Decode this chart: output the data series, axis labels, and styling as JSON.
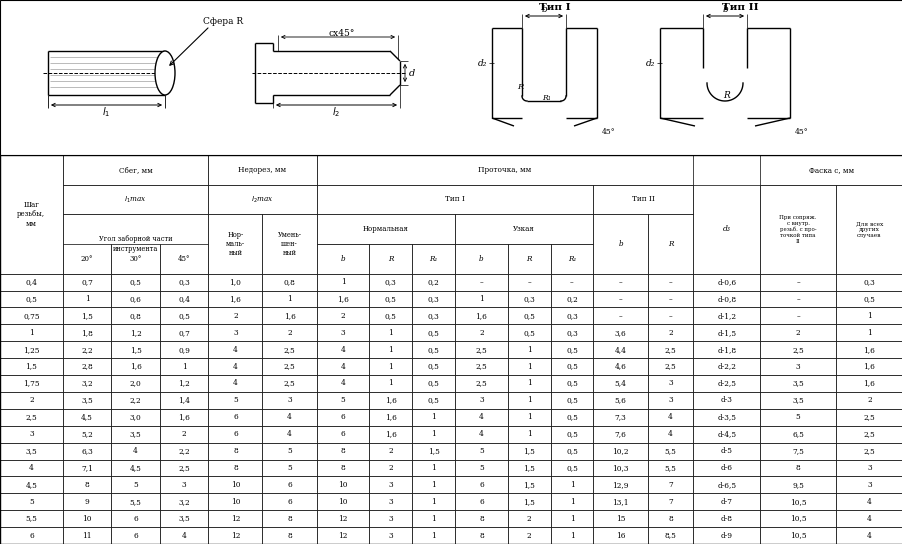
{
  "bg_color": "#ffffff",
  "rows": [
    [
      "0,4",
      "0,7",
      "0,5",
      "0,3",
      "1,0",
      "0,8",
      "1",
      "0,3",
      "0,2",
      "–",
      "–",
      "–",
      "–",
      "–",
      "d-0,6",
      "–",
      "0,3"
    ],
    [
      "0,5",
      "1",
      "0,6",
      "0,4",
      "1,6",
      "1",
      "1,6",
      "0,5",
      "0,3",
      "1",
      "0,3",
      "0,2",
      "–",
      "–",
      "d-0,8",
      "–",
      "0,5"
    ],
    [
      "0,75",
      "1,5",
      "0,8",
      "0,5",
      "2",
      "1,6",
      "2",
      "0,5",
      "0,3",
      "1,6",
      "0,5",
      "0,3",
      "–",
      "–",
      "d-1,2",
      "–",
      "1"
    ],
    [
      "1",
      "1,8",
      "1,2",
      "0,7",
      "3",
      "2",
      "3",
      "1",
      "0,5",
      "2",
      "0,5",
      "0,3",
      "3,6",
      "2",
      "d-1,5",
      "2",
      "1"
    ],
    [
      "1,25",
      "2,2",
      "1,5",
      "0,9",
      "4",
      "2,5",
      "4",
      "1",
      "0,5",
      "2,5",
      "1",
      "0,5",
      "4,4",
      "2,5",
      "d-1,8",
      "2,5",
      "1,6"
    ],
    [
      "1,5",
      "2,8",
      "1,6",
      "1",
      "4",
      "2,5",
      "4",
      "1",
      "0,5",
      "2,5",
      "1",
      "0,5",
      "4,6",
      "2,5",
      "d-2,2",
      "3",
      "1,6"
    ],
    [
      "1,75",
      "3,2",
      "2,0",
      "1,2",
      "4",
      "2,5",
      "4",
      "1",
      "0,5",
      "2,5",
      "1",
      "0,5",
      "5,4",
      "3",
      "d-2,5",
      "3,5",
      "1,6"
    ],
    [
      "2",
      "3,5",
      "2,2",
      "1,4",
      "5",
      "3",
      "5",
      "1,6",
      "0,5",
      "3",
      "1",
      "0,5",
      "5,6",
      "3",
      "d-3",
      "3,5",
      "2"
    ],
    [
      "2,5",
      "4,5",
      "3,0",
      "1,6",
      "6",
      "4",
      "6",
      "1,6",
      "1",
      "4",
      "1",
      "0,5",
      "7,3",
      "4",
      "d-3,5",
      "5",
      "2,5"
    ],
    [
      "3",
      "5,2",
      "3,5",
      "2",
      "6",
      "4",
      "6",
      "1,6",
      "1",
      "4",
      "1",
      "0,5",
      "7,6",
      "4",
      "d-4,5",
      "6,5",
      "2,5"
    ],
    [
      "3,5",
      "6,3",
      "4",
      "2,2",
      "8",
      "5",
      "8",
      "2",
      "1,5",
      "5",
      "1,5",
      "0,5",
      "10,2",
      "5,5",
      "d-5",
      "7,5",
      "2,5"
    ],
    [
      "4",
      "7,1",
      "4,5",
      "2,5",
      "8",
      "5",
      "8",
      "2",
      "1",
      "5",
      "1,5",
      "0,5",
      "10,3",
      "5,5",
      "d-6",
      "8",
      "3"
    ],
    [
      "4,5",
      "8",
      "5",
      "3",
      "10",
      "6",
      "10",
      "3",
      "1",
      "6",
      "1,5",
      "1",
      "12,9",
      "7",
      "d-6,5",
      "9,5",
      "3"
    ],
    [
      "5",
      "9",
      "5,5",
      "3,2",
      "10",
      "6",
      "10",
      "3",
      "1",
      "6",
      "1,5",
      "1",
      "13,1",
      "7",
      "d-7",
      "10,5",
      "4"
    ],
    [
      "5,5",
      "10",
      "6",
      "3,5",
      "12",
      "8",
      "12",
      "3",
      "1",
      "8",
      "2",
      "1",
      "15",
      "8",
      "d-8",
      "10,5",
      "4"
    ],
    [
      "6",
      "11",
      "6",
      "4",
      "12",
      "8",
      "12",
      "3",
      "1",
      "8",
      "2",
      "1",
      "16",
      "8,5",
      "d-9",
      "10,5",
      "4"
    ]
  ],
  "num_data_rows": 16,
  "fig_width": 9.03,
  "fig_height": 5.44,
  "dpi": 100
}
